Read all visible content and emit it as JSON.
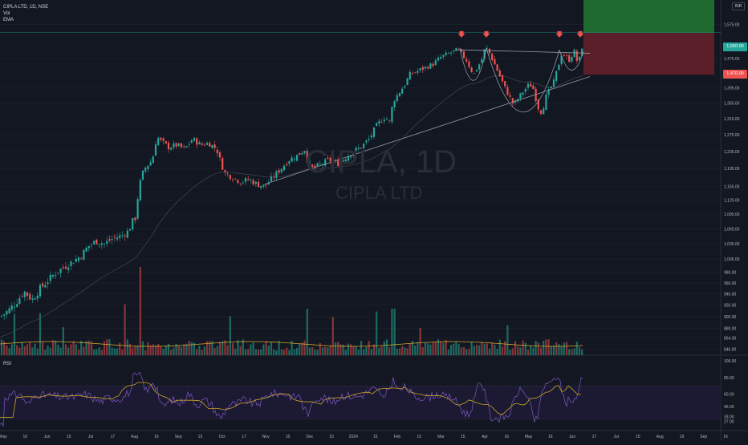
{
  "header": {
    "symbol_line": "CIPLA LTD, 1D, NSE",
    "indicator_1": "Vol",
    "indicator_2": "EMA",
    "currency_badge": "INR"
  },
  "watermark": {
    "symbol": "CIPLA, 1D",
    "name": "CIPLA LTD"
  },
  "rsi_label": "RSI",
  "price_tags": {
    "last": "1,550.00",
    "alert": "1,470.00"
  },
  "colors": {
    "background": "#131722",
    "up": "#26a69a",
    "down": "#ef5350",
    "ema": "#b2b5be",
    "volume_ma": "#c9a42a",
    "rsi_line": "#7e57c2",
    "rsi_ma": "#c9a42a",
    "target_zone": "#1f6a2f",
    "stop_zone": "#5b1f2a",
    "pattern_lines": "#9598a1",
    "markers": "#ef5350"
  },
  "chart_data": {
    "type": "candlestick",
    "title": "CIPLA LTD, 1D, NSE",
    "price_axis": {
      "scale": "log",
      "ticks": [
        "1,575.00",
        "1,475.00",
        "1,395.00",
        "1,355.00",
        "1,315.00",
        "1,275.00",
        "1,235.00",
        "1,195.00",
        "1,155.00",
        "1,125.00",
        "1,095.00",
        "1,065.00",
        "1,035.00",
        "1,005.00",
        "980.00",
        "960.00",
        "940.00",
        "920.00",
        "900.00",
        "880.00",
        "864.00",
        "846.00"
      ],
      "range": [
        840,
        1600
      ]
    },
    "time_axis": {
      "ticks": [
        "May",
        "16",
        "Jun",
        "15",
        "Jul",
        "17",
        "Aug",
        "16",
        "Sep",
        "15",
        "Oct",
        "17",
        "Nov",
        "15",
        "Dec",
        "15",
        "2024",
        "15",
        "Feb",
        "15",
        "Mar",
        "15",
        "Apr",
        "16",
        "May",
        "16",
        "Jun",
        "17",
        "Jul",
        "15",
        "Aug",
        "19",
        "Sep",
        "16"
      ]
    },
    "price_path": [
      [
        0,
        900
      ],
      [
        10,
        910
      ],
      [
        20,
        925
      ],
      [
        30,
        945
      ],
      [
        40,
        930
      ],
      [
        50,
        950
      ],
      [
        60,
        965
      ],
      [
        70,
        980
      ],
      [
        80,
        990
      ],
      [
        90,
        1000
      ],
      [
        100,
        1010
      ],
      [
        110,
        1030
      ],
      [
        120,
        1040
      ],
      [
        130,
        1035
      ],
      [
        140,
        1045
      ],
      [
        150,
        1050
      ],
      [
        160,
        1060
      ],
      [
        165,
        1080
      ],
      [
        170,
        1090
      ],
      [
        172,
        1140
      ],
      [
        176,
        1175
      ],
      [
        180,
        1195
      ],
      [
        185,
        1205
      ],
      [
        190,
        1215
      ],
      [
        193,
        1250
      ],
      [
        196,
        1270
      ],
      [
        200,
        1260
      ],
      [
        210,
        1245
      ],
      [
        220,
        1250
      ],
      [
        230,
        1240
      ],
      [
        240,
        1265
      ],
      [
        250,
        1250
      ],
      [
        260,
        1255
      ],
      [
        270,
        1240
      ],
      [
        275,
        1210
      ],
      [
        280,
        1185
      ],
      [
        290,
        1175
      ],
      [
        300,
        1165
      ],
      [
        310,
        1170
      ],
      [
        320,
        1160
      ],
      [
        330,
        1155
      ],
      [
        340,
        1175
      ],
      [
        350,
        1195
      ],
      [
        360,
        1215
      ],
      [
        370,
        1225
      ],
      [
        380,
        1240
      ],
      [
        384,
        1205
      ],
      [
        390,
        1195
      ],
      [
        400,
        1205
      ],
      [
        410,
        1215
      ],
      [
        420,
        1205
      ],
      [
        430,
        1220
      ],
      [
        440,
        1235
      ],
      [
        450,
        1245
      ],
      [
        460,
        1265
      ],
      [
        470,
        1300
      ],
      [
        480,
        1320
      ],
      [
        485,
        1305
      ],
      [
        490,
        1360
      ],
      [
        500,
        1390
      ],
      [
        505,
        1405
      ],
      [
        510,
        1430
      ],
      [
        520,
        1440
      ],
      [
        530,
        1450
      ],
      [
        540,
        1460
      ],
      [
        550,
        1480
      ],
      [
        560,
        1490
      ],
      [
        570,
        1500
      ],
      [
        580,
        1475
      ],
      [
        590,
        1430
      ],
      [
        600,
        1470
      ],
      [
        605,
        1510
      ],
      [
        610,
        1490
      ],
      [
        620,
        1440
      ],
      [
        630,
        1390
      ],
      [
        640,
        1350
      ],
      [
        650,
        1380
      ],
      [
        660,
        1405
      ],
      [
        665,
        1390
      ],
      [
        670,
        1345
      ],
      [
        675,
        1330
      ],
      [
        680,
        1370
      ],
      [
        690,
        1410
      ],
      [
        700,
        1490
      ],
      [
        710,
        1470
      ],
      [
        715,
        1500
      ],
      [
        720,
        1460
      ],
      [
        724,
        1490
      ],
      [
        728,
        1550
      ]
    ],
    "pattern": {
      "neckline": [
        1500,
        1490
      ],
      "support_line": [
        1160,
        1425
      ],
      "target_zone": [
        1550,
        1660
      ],
      "stop_zone": [
        1430,
        1550
      ]
    },
    "volume_panel": true,
    "rsi": {
      "ticks": [
        "100.00",
        "80.00",
        "60.00",
        "45.00",
        "33.00",
        "27.00"
      ],
      "upper_band": 70,
      "lower_band": 30
    }
  }
}
